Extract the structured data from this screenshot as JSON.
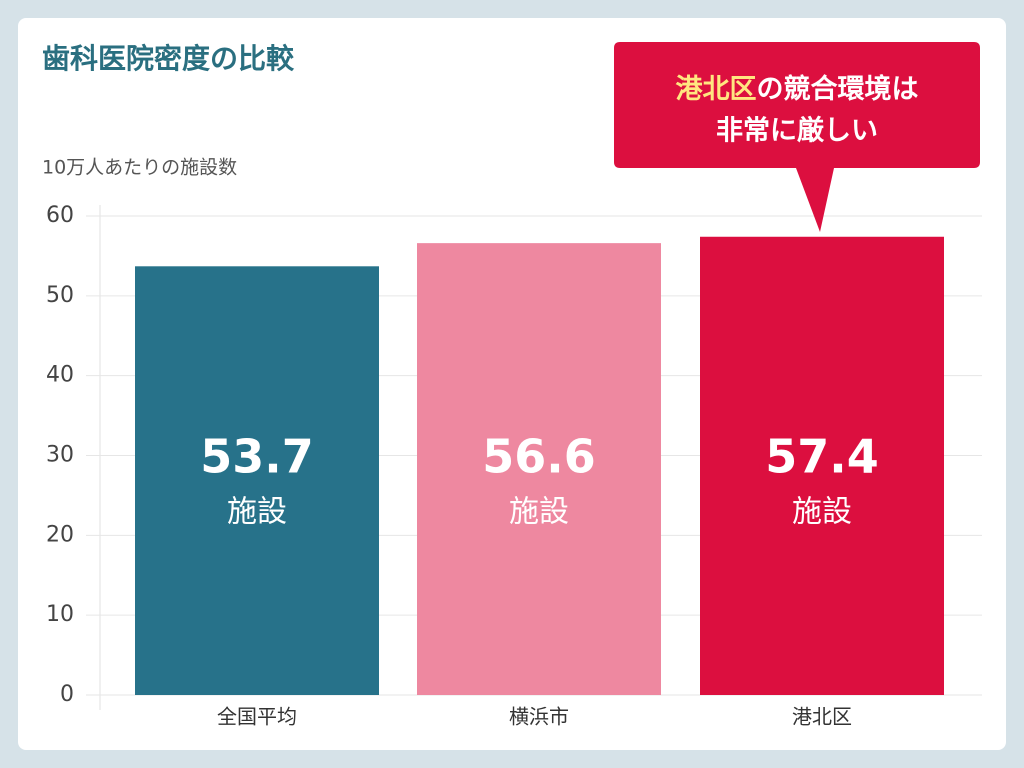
{
  "chart_data": {
    "type": "bar",
    "title": "歯科医院密度の比較",
    "y_label": "10万人あたりの施設数",
    "categories": [
      "全国平均",
      "横浜市",
      "港北区"
    ],
    "values": [
      53.7,
      56.6,
      57.4
    ],
    "colors": [
      "#27728a",
      "#ee88a0",
      "#dc0f3f"
    ],
    "value_unit": "施設",
    "ylim": [
      0,
      60
    ],
    "yticks": [
      0,
      10,
      20,
      30,
      40,
      50,
      60
    ],
    "grid": true,
    "annotation": {
      "highlight": "港北区",
      "text": "の競合環境は",
      "line2": "非常に厳しい",
      "color": "#dc0f3f",
      "highlight_color": "#ffe680"
    }
  }
}
